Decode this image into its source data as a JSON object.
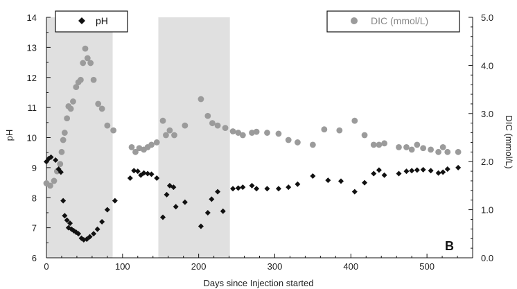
{
  "chart_data": {
    "type": "scatter",
    "panel_label": "B",
    "xlabel": "Days since Injection started",
    "ylabel_left": "pH",
    "ylabel_right": "DIC (mmol/L)",
    "xlim": [
      0,
      560
    ],
    "ylim_left": [
      6,
      14
    ],
    "ylim_right": [
      0,
      5
    ],
    "x_ticks": [
      "0",
      "100",
      "200",
      "300",
      "400",
      "500"
    ],
    "y_left_ticks": [
      "6",
      "7",
      "8",
      "9",
      "10",
      "11",
      "12",
      "13",
      "14"
    ],
    "y_right_ticks": [
      "0.0",
      "1.0",
      "2.0",
      "3.0",
      "4.0",
      "5.0"
    ],
    "grid": false,
    "shaded_periods": [
      [
        0,
        87
      ],
      [
        147,
        241
      ]
    ],
    "colors": {
      "ph": "#111111",
      "dic": "#9b9b9b",
      "shade": "#e0e0e0"
    },
    "series": [
      {
        "name": "pH",
        "axis": "left",
        "marker": "diamond",
        "points": [
          [
            0,
            9.2
          ],
          [
            3,
            9.3
          ],
          [
            6,
            9.35
          ],
          [
            12,
            9.25
          ],
          [
            16,
            8.95
          ],
          [
            19,
            8.85
          ],
          [
            22,
            7.9
          ],
          [
            24,
            7.4
          ],
          [
            27,
            7.25
          ],
          [
            29,
            7.0
          ],
          [
            31,
            7.15
          ],
          [
            33,
            6.95
          ],
          [
            36,
            6.9
          ],
          [
            39,
            6.85
          ],
          [
            42,
            6.8
          ],
          [
            46,
            6.65
          ],
          [
            49,
            6.6
          ],
          [
            53,
            6.62
          ],
          [
            57,
            6.7
          ],
          [
            62,
            6.8
          ],
          [
            67,
            6.95
          ],
          [
            73,
            7.2
          ],
          [
            80,
            7.6
          ],
          [
            90,
            7.9
          ],
          [
            110,
            8.65
          ],
          [
            115,
            8.9
          ],
          [
            120,
            8.88
          ],
          [
            124,
            8.75
          ],
          [
            128,
            8.82
          ],
          [
            133,
            8.8
          ],
          [
            138,
            8.78
          ],
          [
            145,
            8.65
          ],
          [
            153,
            7.35
          ],
          [
            158,
            8.1
          ],
          [
            162,
            8.4
          ],
          [
            167,
            8.35
          ],
          [
            170,
            7.7
          ],
          [
            182,
            7.85
          ],
          [
            203,
            7.05
          ],
          [
            212,
            7.5
          ],
          [
            217,
            7.95
          ],
          [
            225,
            8.2
          ],
          [
            232,
            7.55
          ],
          [
            245,
            8.3
          ],
          [
            252,
            8.32
          ],
          [
            258,
            8.35
          ],
          [
            270,
            8.4
          ],
          [
            276,
            8.3
          ],
          [
            290,
            8.3
          ],
          [
            305,
            8.3
          ],
          [
            318,
            8.35
          ],
          [
            330,
            8.45
          ],
          [
            350,
            8.72
          ],
          [
            370,
            8.58
          ],
          [
            387,
            8.55
          ],
          [
            405,
            8.2
          ],
          [
            418,
            8.5
          ],
          [
            430,
            8.8
          ],
          [
            437,
            8.92
          ],
          [
            444,
            8.75
          ],
          [
            463,
            8.8
          ],
          [
            473,
            8.88
          ],
          [
            480,
            8.9
          ],
          [
            487,
            8.92
          ],
          [
            495,
            8.93
          ],
          [
            505,
            8.9
          ],
          [
            515,
            8.82
          ],
          [
            521,
            8.85
          ],
          [
            527,
            8.95
          ],
          [
            541,
            9.0
          ]
        ]
      },
      {
        "name": "DIC (mmol/L)",
        "axis": "right",
        "marker": "circle",
        "points": [
          [
            0,
            1.55
          ],
          [
            5,
            1.5
          ],
          [
            10,
            1.6
          ],
          [
            14,
            1.8
          ],
          [
            18,
            1.95
          ],
          [
            20,
            2.2
          ],
          [
            22,
            2.45
          ],
          [
            24,
            2.6
          ],
          [
            27,
            2.9
          ],
          [
            29,
            3.15
          ],
          [
            32,
            3.1
          ],
          [
            35,
            3.25
          ],
          [
            39,
            3.55
          ],
          [
            42,
            3.65
          ],
          [
            45,
            3.7
          ],
          [
            48,
            4.05
          ],
          [
            51,
            4.35
          ],
          [
            54,
            4.15
          ],
          [
            58,
            4.05
          ],
          [
            62,
            3.7
          ],
          [
            68,
            3.2
          ],
          [
            73,
            3.1
          ],
          [
            80,
            2.75
          ],
          [
            88,
            2.65
          ],
          [
            112,
            2.3
          ],
          [
            117,
            2.2
          ],
          [
            122,
            2.28
          ],
          [
            128,
            2.25
          ],
          [
            133,
            2.3
          ],
          [
            138,
            2.35
          ],
          [
            145,
            2.4
          ],
          [
            153,
            2.85
          ],
          [
            157,
            2.55
          ],
          [
            162,
            2.65
          ],
          [
            168,
            2.55
          ],
          [
            182,
            2.75
          ],
          [
            203,
            3.3
          ],
          [
            212,
            2.95
          ],
          [
            218,
            2.8
          ],
          [
            225,
            2.75
          ],
          [
            235,
            2.7
          ],
          [
            245,
            2.63
          ],
          [
            252,
            2.6
          ],
          [
            258,
            2.55
          ],
          [
            270,
            2.6
          ],
          [
            276,
            2.62
          ],
          [
            290,
            2.6
          ],
          [
            305,
            2.58
          ],
          [
            318,
            2.45
          ],
          [
            330,
            2.4
          ],
          [
            350,
            2.35
          ],
          [
            365,
            2.67
          ],
          [
            385,
            2.65
          ],
          [
            405,
            2.85
          ],
          [
            418,
            2.55
          ],
          [
            430,
            2.35
          ],
          [
            437,
            2.35
          ],
          [
            444,
            2.38
          ],
          [
            463,
            2.3
          ],
          [
            473,
            2.3
          ],
          [
            480,
            2.25
          ],
          [
            487,
            2.35
          ],
          [
            495,
            2.28
          ],
          [
            505,
            2.25
          ],
          [
            515,
            2.2
          ],
          [
            521,
            2.3
          ],
          [
            527,
            2.2
          ],
          [
            541,
            2.2
          ]
        ]
      }
    ]
  }
}
